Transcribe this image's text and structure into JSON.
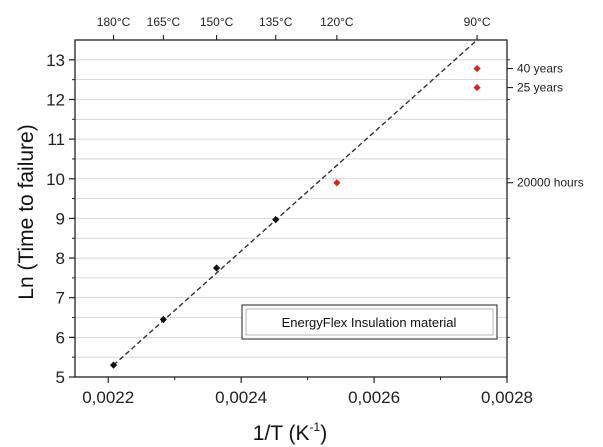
{
  "chart_data": {
    "type": "scatter",
    "xlabel": "1/T (K",
    "xlabel_sup": "-1",
    "xlabel_close": ")",
    "ylabel": "Ln (Time to failure)",
    "xlim": [
      0.00215,
      0.0028
    ],
    "ylim": [
      5,
      13.5
    ],
    "x_ticks": [
      0.0022,
      0.0024,
      0.0026,
      0.0028
    ],
    "x_tick_labels": [
      "0,0022",
      "0,0024",
      "0,0026",
      "0,0028"
    ],
    "y_ticks": [
      5,
      6,
      7,
      8,
      9,
      10,
      11,
      12,
      13
    ],
    "y_tick_labels": [
      "5",
      "6",
      "7",
      "8",
      "9",
      "10",
      "11",
      "12",
      "13"
    ],
    "grid": true,
    "series": [
      {
        "color": "#111111",
        "x": [
          0.002208,
          0.002283,
          0.002363,
          0.002452
        ],
        "y": [
          5.3,
          6.45,
          7.75,
          8.97
        ]
      },
      {
        "color": "#e0201b",
        "x": [
          0.002544,
          0.002755,
          0.002755
        ],
        "y": [
          9.9,
          12.3,
          12.78
        ]
      }
    ],
    "fit_line": {
      "color": "#333333",
      "style": "dashed",
      "x": [
        0.002208,
        0.002755
      ],
      "y": [
        5.3,
        13.5
      ]
    },
    "top_axis": {
      "ticks": [
        0.002208,
        0.002283,
        0.002363,
        0.002452,
        0.002544,
        0.002755
      ],
      "labels": [
        "180°C",
        "165°C",
        "150°C",
        "135°C",
        "120°C",
        "90°C"
      ]
    },
    "right_axis": {
      "ticks": [
        9.9,
        12.3,
        12.78
      ],
      "labels": [
        "20000 hours",
        "25 years",
        "40 years"
      ]
    },
    "annotation": "EnergyFlex Insulation material"
  }
}
